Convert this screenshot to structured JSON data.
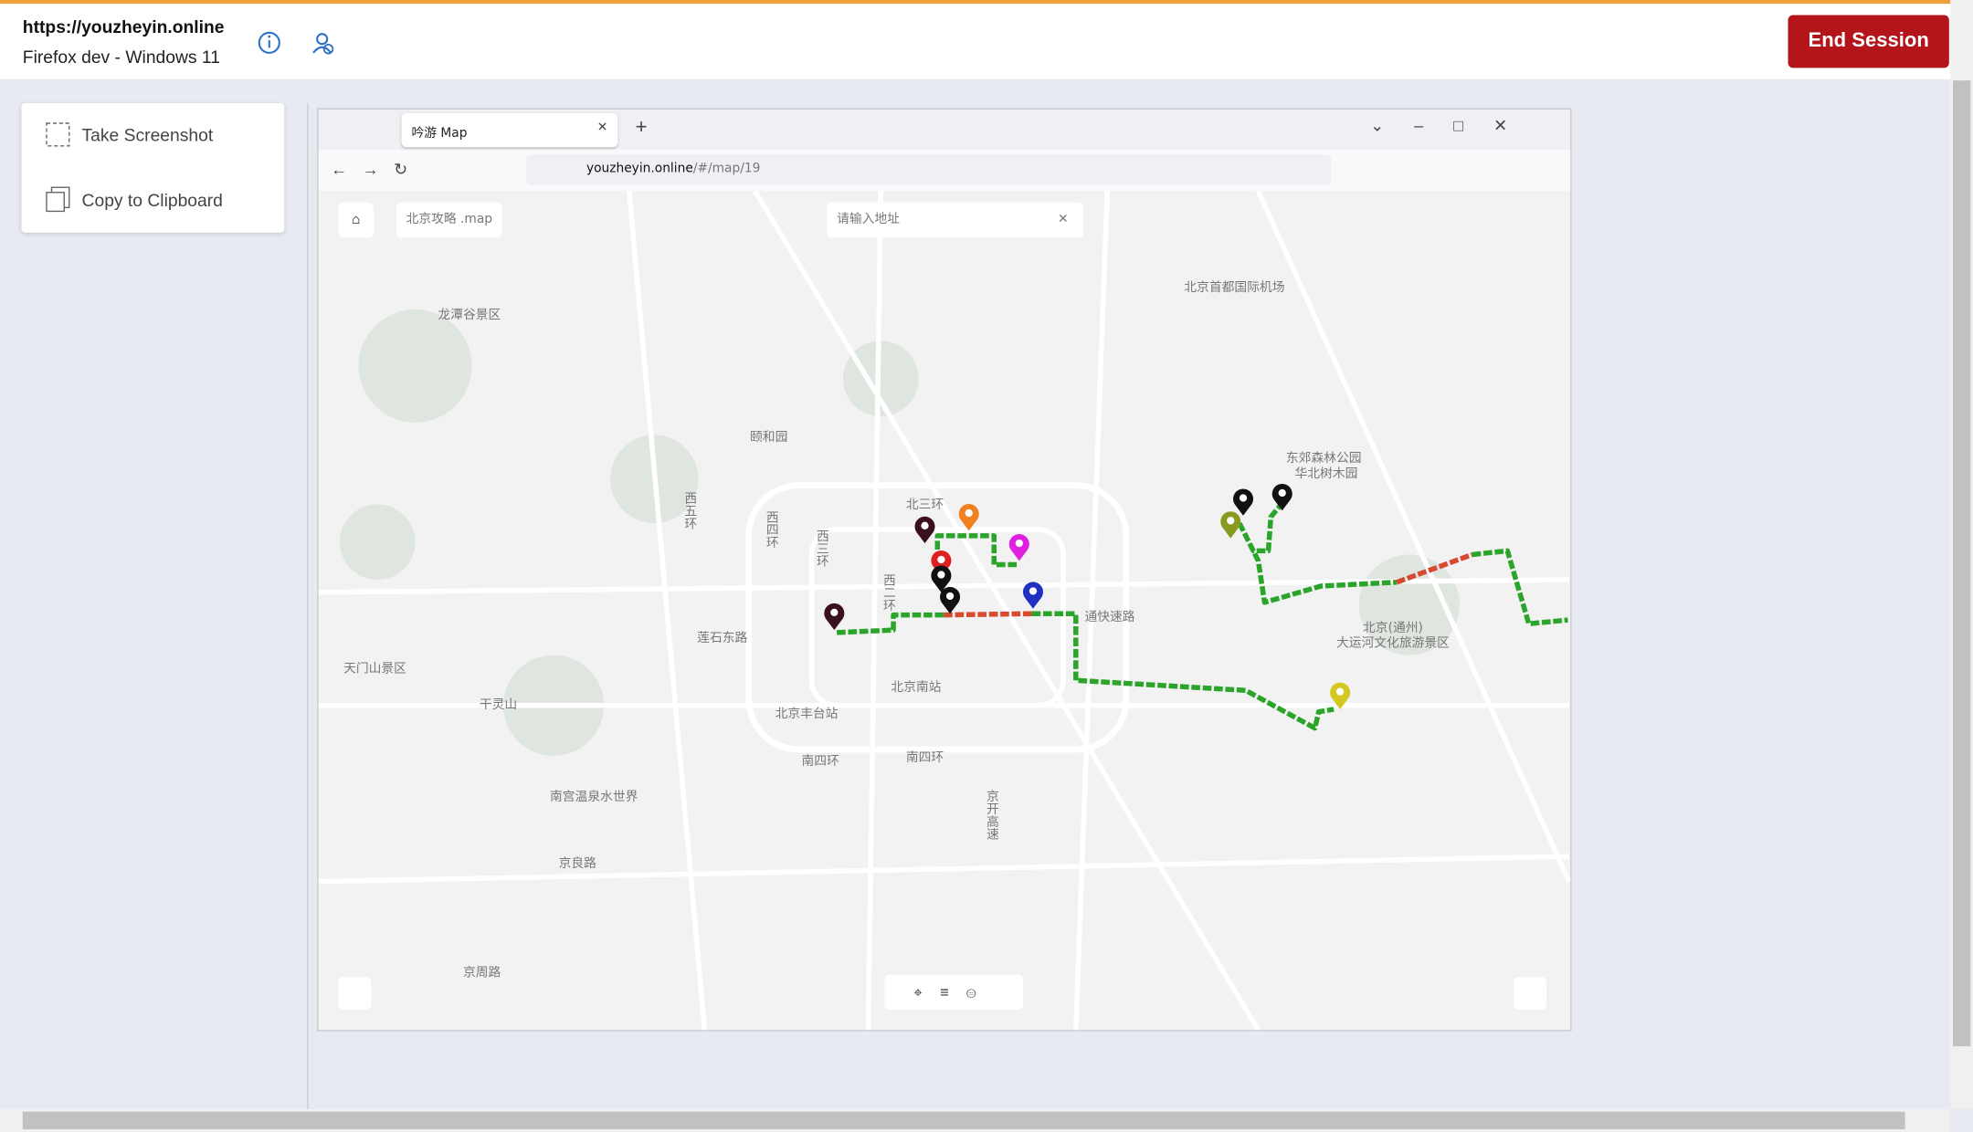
{
  "session": {
    "url": "https://youzheyin.online",
    "browser": "Firefox dev - Windows 11",
    "end_button": "End Session"
  },
  "tools": [
    "Take Screenshot",
    "Copy to Clipboard"
  ],
  "browser": {
    "tab_title": "吟游 Map",
    "address_host": "youzheyin.online",
    "address_path": "/#/map/19"
  },
  "map": {
    "search_label": "北京攻略 .map",
    "search_placeholder": "请输入地址",
    "labels": [
      "北京首都国际机场",
      "龙潭谷景区",
      "颐和园",
      "北三环",
      "东郊森林公园",
      "华北树木园",
      "莲石东路",
      "北京南站",
      "北京丰台站",
      "南四环",
      "南四环",
      "干灵山",
      "天门山景区",
      "南宫温泉水世界",
      "京良路",
      "京周路",
      "北京(通州)",
      "大运河文化旅游景区",
      "通快速路",
      "西五环",
      "西四环",
      "西三环",
      "西二环",
      "京开高速"
    ]
  }
}
